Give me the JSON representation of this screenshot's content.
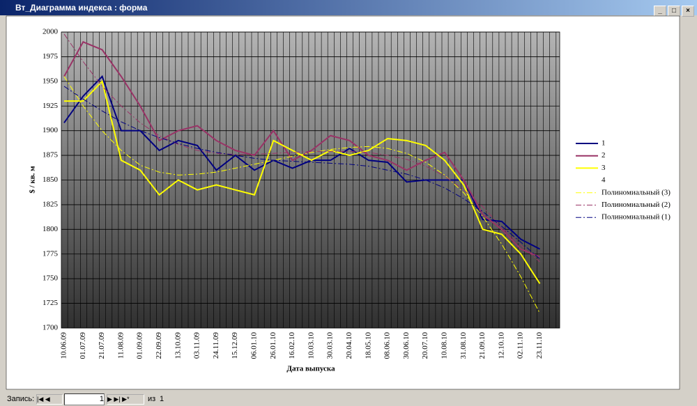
{
  "window": {
    "title": "Вт_Диаграмма индекса : форма"
  },
  "chart_data": {
    "type": "line",
    "y_label": "$ / кв. м",
    "x_label": "Дата выпуска",
    "categories": [
      "10.06.09",
      "01.07.09",
      "21.07.09",
      "11.08.09",
      "01.09.09",
      "22.09.09",
      "13.10.09",
      "03.11.09",
      "24.11.09",
      "15.12.09",
      "06.01.10",
      "26.01.10",
      "16.02.10",
      "10.03.10",
      "30.03.10",
      "20.04.10",
      "18.05.10",
      "08.06.10",
      "30.06.10",
      "20.07.10",
      "10.08.10",
      "31.08.10",
      "21.09.10",
      "12.10.10",
      "02.11.10",
      "23.11.10"
    ],
    "ylim": [
      1700,
      2000
    ],
    "yticks": [
      1700,
      1725,
      1750,
      1775,
      1800,
      1825,
      1850,
      1875,
      1900,
      1925,
      1950,
      1975,
      2000
    ],
    "grid": true,
    "series": [
      {
        "name": "1",
        "color": "#000080",
        "style": "solid",
        "values": [
          1908,
          1935,
          1955,
          1900,
          1900,
          1880,
          1890,
          1885,
          1860,
          1875,
          1860,
          1870,
          1862,
          1870,
          1870,
          1882,
          1870,
          1868,
          1848,
          1850,
          1850,
          1850,
          1810,
          1808,
          1790,
          1780
        ]
      },
      {
        "name": "2",
        "color": "#993366",
        "style": "solid",
        "values": [
          1955,
          1990,
          1982,
          1955,
          1925,
          1890,
          1900,
          1905,
          1890,
          1880,
          1875,
          1900,
          1870,
          1880,
          1895,
          1890,
          1875,
          1870,
          1860,
          1870,
          1878,
          1850,
          1815,
          1800,
          1780,
          1772
        ]
      },
      {
        "name": "3",
        "color": "#ffff00",
        "style": "solid",
        "values": [
          1930,
          1930,
          1950,
          1870,
          1860,
          1835,
          1850,
          1840,
          1845,
          1840,
          1835,
          1890,
          1880,
          1870,
          1880,
          1875,
          1880,
          1892,
          1890,
          1885,
          1870,
          1845,
          1800,
          1795,
          1775,
          1745
        ]
      },
      {
        "name": "4",
        "color": "#000000",
        "style": "solid",
        "values": [
          null,
          null,
          null,
          null,
          null,
          null,
          null,
          null,
          null,
          null,
          null,
          null,
          null,
          null,
          null,
          null,
          null,
          null,
          null,
          null,
          null,
          null,
          null,
          null,
          null,
          null
        ]
      },
      {
        "name": "Полиномиальный (3)",
        "color": "#ffff00",
        "style": "dashed",
        "values": [
          1955,
          1925,
          1900,
          1880,
          1865,
          1858,
          1855,
          1856,
          1858,
          1862,
          1866,
          1870,
          1874,
          1878,
          1881,
          1883,
          1884,
          1882,
          1877,
          1868,
          1855,
          1837,
          1813,
          1785,
          1752,
          1715
        ]
      },
      {
        "name": "Полиномиальный (2)",
        "color": "#993366",
        "style": "dashed",
        "values": [
          1998,
          1970,
          1945,
          1925,
          1908,
          1895,
          1886,
          1880,
          1877,
          1876,
          1876,
          1877,
          1878,
          1879,
          1879,
          1879,
          1878,
          1875,
          1871,
          1864,
          1854,
          1840,
          1823,
          1802,
          1784,
          1767
        ]
      },
      {
        "name": "Полиномиальный (1)",
        "color": "#000080",
        "style": "dashed",
        "values": [
          1945,
          1932,
          1920,
          1909,
          1900,
          1893,
          1887,
          1882,
          1878,
          1875,
          1872,
          1870,
          1869,
          1868,
          1867,
          1866,
          1864,
          1860,
          1856,
          1850,
          1842,
          1831,
          1818,
          1803,
          1787,
          1770
        ]
      }
    ]
  },
  "record_bar": {
    "label": "Запись:",
    "current": 1,
    "of": "из",
    "total": 1
  }
}
